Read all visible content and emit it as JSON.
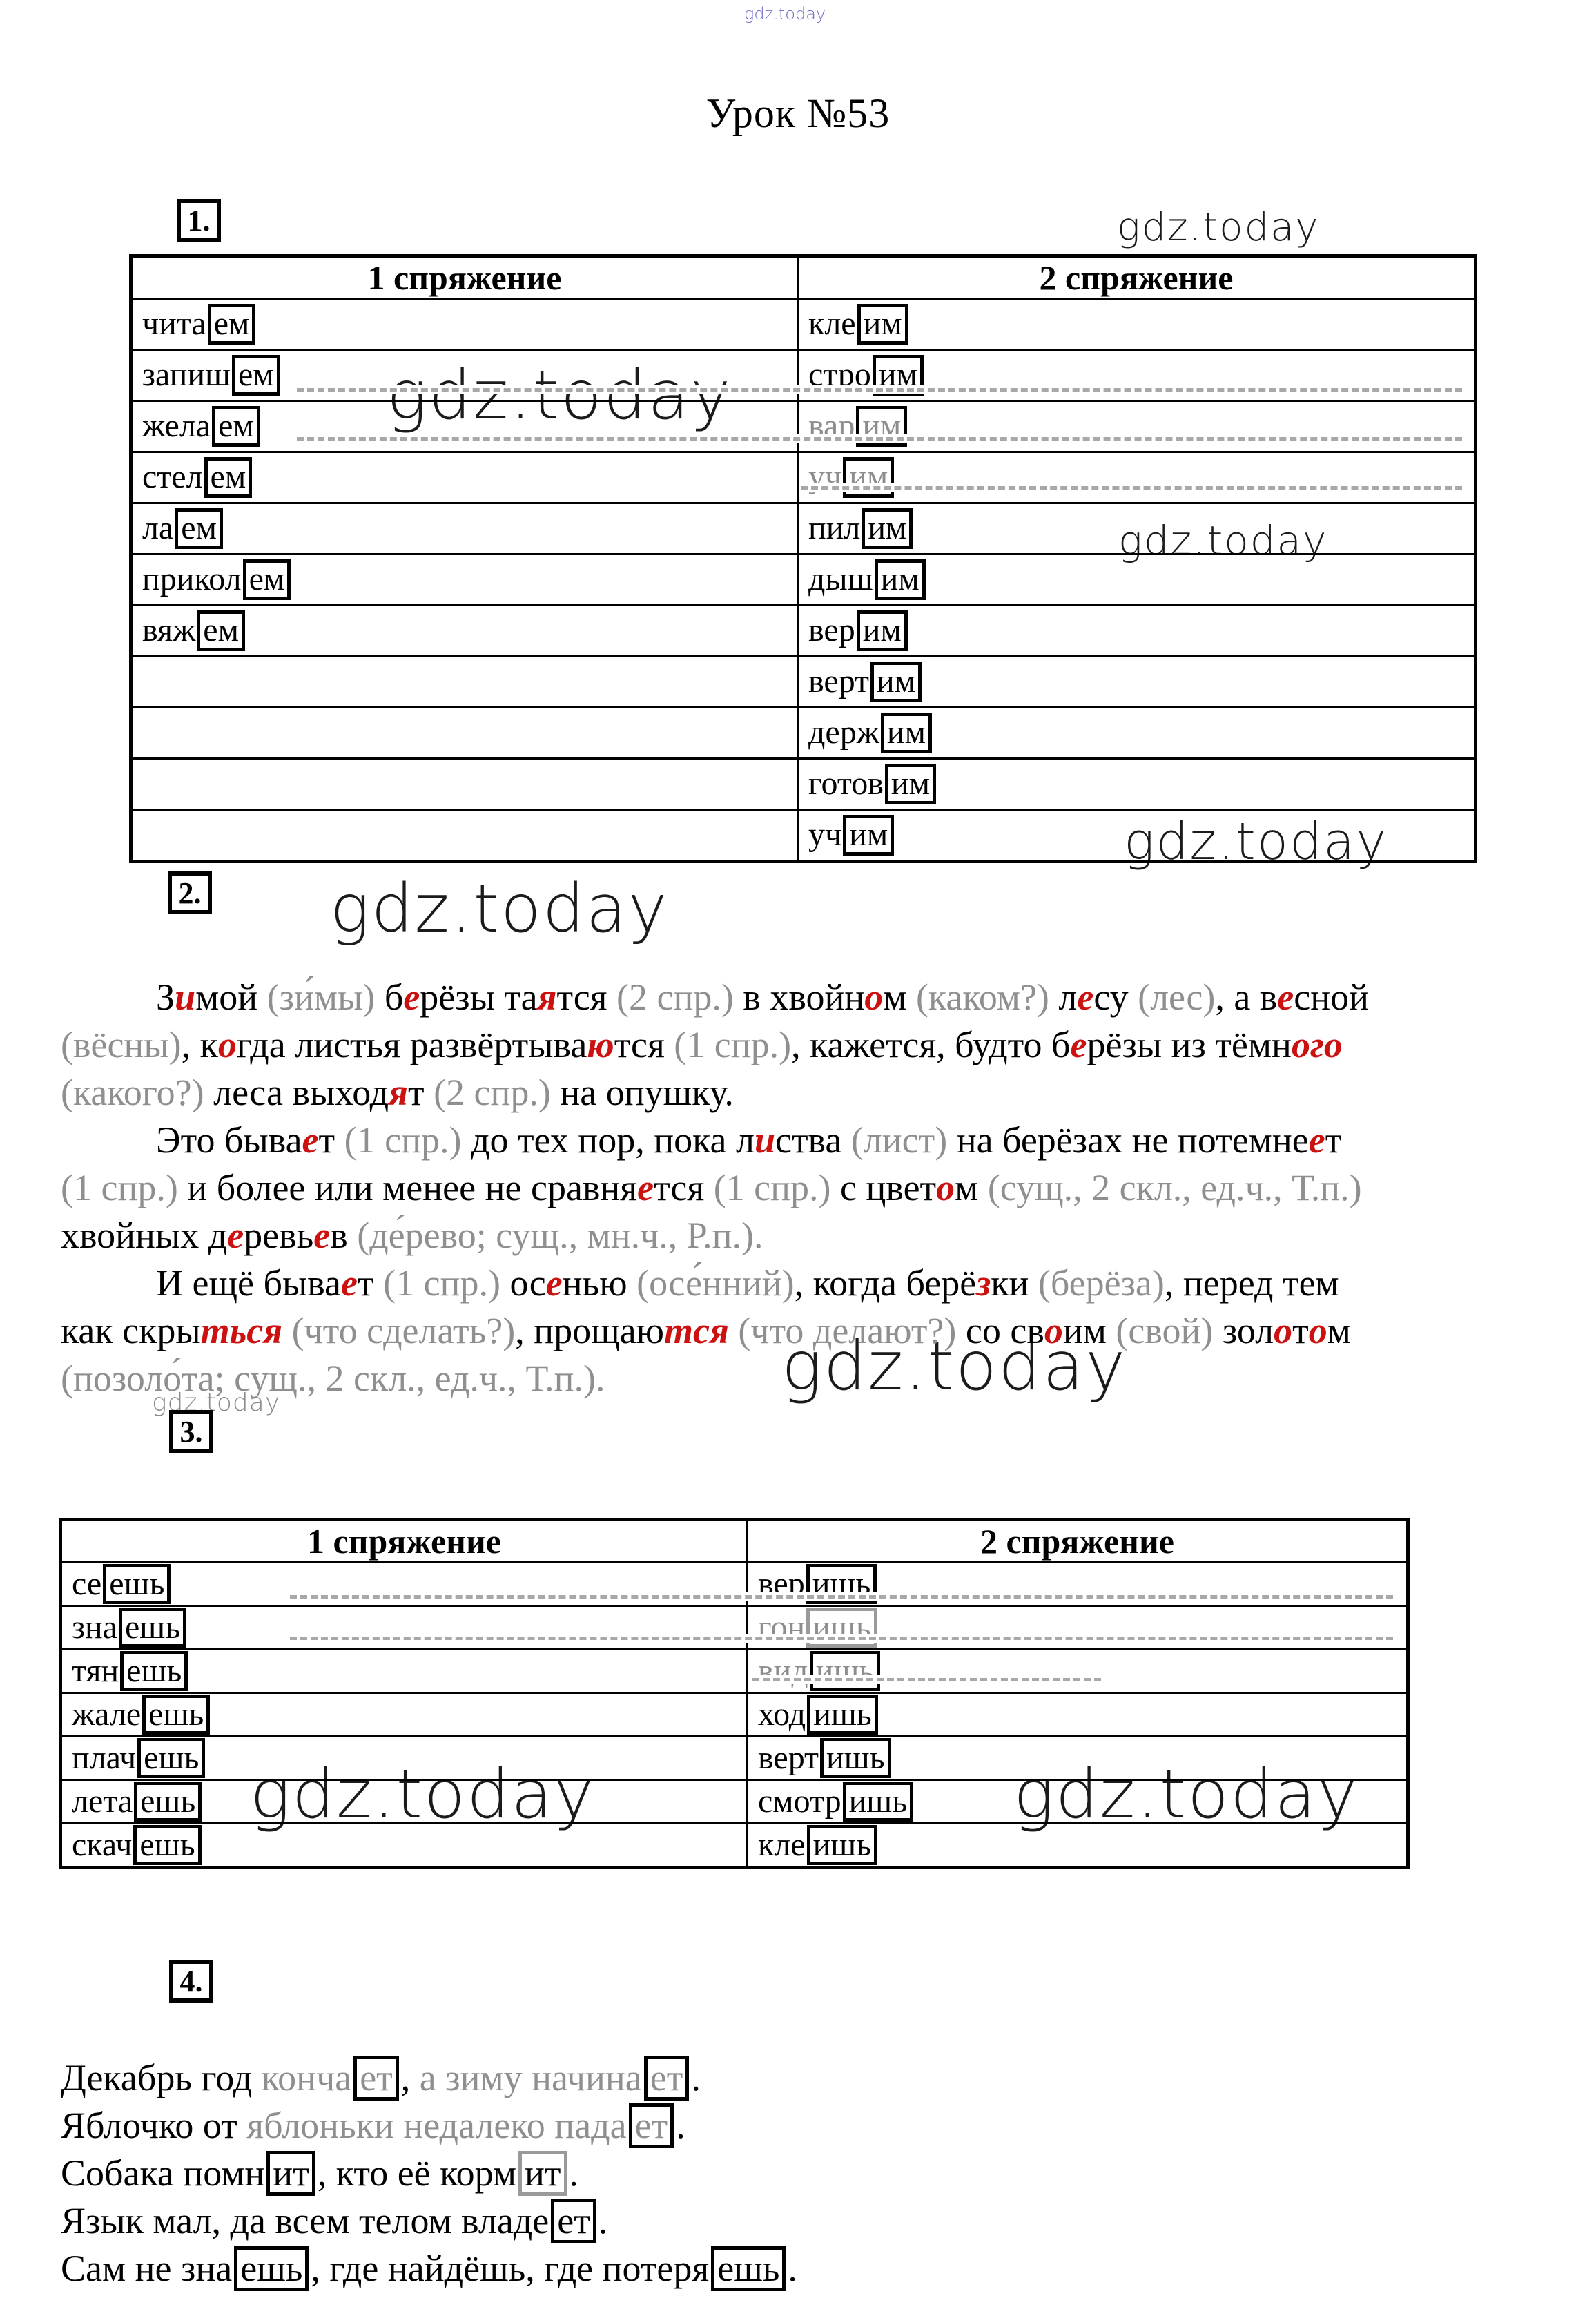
{
  "title": "Урок №53",
  "watermark_text": "gdz.today",
  "colors": {
    "red": "#cc1111",
    "hint_gray": "#8f8f8f",
    "watermark_blue": "#5b5bc0",
    "watermark_dark": "#1b1b1b"
  },
  "boxes": {
    "b1": "1.",
    "b2": "2.",
    "b3": "3.",
    "b4": "4."
  },
  "table1": {
    "headers": [
      "1 спряжение",
      "2 спряжение"
    ],
    "rows": [
      {
        "l": [
          "чита",
          "ем"
        ],
        "r": [
          "кле",
          "им"
        ]
      },
      {
        "l": [
          "запиш",
          "ем"
        ],
        "r": [
          "стро",
          "им"
        ]
      },
      {
        "l": [
          "жела",
          "ем"
        ],
        "r": [
          "вар",
          "им"
        ],
        "rdim": true
      },
      {
        "l": [
          "стел",
          "ем"
        ],
        "r": [
          "уч",
          "им"
        ],
        "rdim": true
      },
      {
        "l": [
          "ла",
          "ем"
        ],
        "r": [
          "пил",
          "им"
        ]
      },
      {
        "l": [
          "прикол",
          "ем"
        ],
        "r": [
          "дыш",
          "им"
        ]
      },
      {
        "l": [
          "вяж",
          "ем"
        ],
        "r": [
          "вер",
          "им"
        ]
      },
      {
        "l": null,
        "r": [
          "верт",
          "им"
        ]
      },
      {
        "l": null,
        "r": [
          "держ",
          "им"
        ]
      },
      {
        "l": null,
        "r": [
          "готов",
          "им"
        ]
      },
      {
        "l": null,
        "r": [
          "уч",
          "им"
        ]
      }
    ]
  },
  "table2": {
    "headers": [
      "1 спряжение",
      "2 спряжение"
    ],
    "rows": [
      {
        "l": [
          "се",
          "ешь"
        ],
        "r": [
          "вер",
          "ишь"
        ]
      },
      {
        "l": [
          "зна",
          "ешь"
        ],
        "r": [
          "гон",
          "ишь"
        ],
        "rdim": true,
        "rdimbox": true
      },
      {
        "l": [
          "тян",
          "ешь"
        ],
        "r": [
          "вид",
          "ишь"
        ],
        "rdim": true
      },
      {
        "l": [
          "жале",
          "ешь"
        ],
        "r": [
          "ход",
          "ишь"
        ]
      },
      {
        "l": [
          "плач",
          "ешь"
        ],
        "r": [
          "верт",
          "ишь"
        ]
      },
      {
        "l": [
          "лета",
          "ешь"
        ],
        "r": [
          "смотр",
          "ишь"
        ]
      },
      {
        "l": [
          "скач",
          "ешь"
        ],
        "r": [
          "кле",
          "ишь"
        ]
      }
    ]
  },
  "exercise2_lines": [
    {
      "indent": true,
      "tokens": [
        [
          "З",
          "n"
        ],
        [
          "и",
          "r"
        ],
        [
          "мой ",
          "n"
        ],
        [
          "(зи́мы) ",
          "g"
        ],
        [
          "б",
          "n"
        ],
        [
          "е",
          "r"
        ],
        [
          "рёзы та",
          "n"
        ],
        [
          "я",
          "r"
        ],
        [
          "тся ",
          "n"
        ],
        [
          "(2 спр.) ",
          "g"
        ],
        [
          "в хвойн",
          "n"
        ],
        [
          "о",
          "r"
        ],
        [
          "м ",
          "n"
        ],
        [
          "(каком?) ",
          "g"
        ],
        [
          "л",
          "n"
        ],
        [
          "е",
          "r"
        ],
        [
          "су ",
          "n"
        ],
        [
          "(лес)",
          "g"
        ],
        [
          ", а в",
          "n"
        ],
        [
          "е",
          "r"
        ],
        [
          "сной",
          "n"
        ]
      ]
    },
    {
      "indent": false,
      "tokens": [
        [
          "(вёсны)",
          "g"
        ],
        [
          ", к",
          "n"
        ],
        [
          "о",
          "r"
        ],
        [
          "гда листья развёртыва",
          "n"
        ],
        [
          "ю",
          "r"
        ],
        [
          "тся ",
          "n"
        ],
        [
          "(1 спр.)",
          "g"
        ],
        [
          ", кажется, будто б",
          "n"
        ],
        [
          "е",
          "r"
        ],
        [
          "рёзы из тёмн",
          "n"
        ],
        [
          "ого",
          "r"
        ]
      ]
    },
    {
      "indent": false,
      "tokens": [
        [
          "(какого?) ",
          "g"
        ],
        [
          "леса выход",
          "n"
        ],
        [
          "я",
          "r"
        ],
        [
          "т ",
          "n"
        ],
        [
          "(2 спр.) ",
          "g"
        ],
        [
          "на опушку.",
          "n"
        ]
      ]
    },
    {
      "indent": true,
      "tokens": [
        [
          "Это быва",
          "n"
        ],
        [
          "е",
          "r"
        ],
        [
          "т ",
          "n"
        ],
        [
          "(1 спр.) ",
          "g"
        ],
        [
          "до тех пор, пока л",
          "n"
        ],
        [
          "и",
          "r"
        ],
        [
          "ства ",
          "n"
        ],
        [
          "(лист) ",
          "g"
        ],
        [
          "на берёзах не потемне",
          "n"
        ],
        [
          "е",
          "r"
        ],
        [
          "т",
          "n"
        ]
      ]
    },
    {
      "indent": false,
      "tokens": [
        [
          "(1 спр.) ",
          "g"
        ],
        [
          "и более или менее не сравня",
          "n"
        ],
        [
          "е",
          "r"
        ],
        [
          "тся ",
          "n"
        ],
        [
          "(1 спр.) ",
          "g"
        ],
        [
          "с цвет",
          "n"
        ],
        [
          "о",
          "r"
        ],
        [
          "м ",
          "n"
        ],
        [
          "(сущ., 2 скл., ед.ч., Т.п.)",
          "g"
        ]
      ]
    },
    {
      "indent": false,
      "tokens": [
        [
          "хвойных д",
          "n"
        ],
        [
          "е",
          "r"
        ],
        [
          "ревь",
          "n"
        ],
        [
          "е",
          "r"
        ],
        [
          "в ",
          "n"
        ],
        [
          "(де́рево; сущ., мн.ч., Р.п.).",
          "g"
        ]
      ]
    },
    {
      "indent": true,
      "tokens": [
        [
          "И ещё быва",
          "n"
        ],
        [
          "е",
          "r"
        ],
        [
          "т ",
          "n"
        ],
        [
          "(1 спр.) ",
          "g"
        ],
        [
          "ос",
          "n"
        ],
        [
          "е",
          "r"
        ],
        [
          "нью ",
          "n"
        ],
        [
          "(осе́нний)",
          "g"
        ],
        [
          ", когда берё",
          "n"
        ],
        [
          "з",
          "r"
        ],
        [
          "ки ",
          "n"
        ],
        [
          "(берёза)",
          "g"
        ],
        [
          ", перед тем",
          "n"
        ]
      ]
    },
    {
      "indent": false,
      "tokens": [
        [
          "как скры",
          "n"
        ],
        [
          "ться",
          "r"
        ],
        [
          " ",
          "n"
        ],
        [
          "(что сделать?)",
          "g"
        ],
        [
          ", проща",
          "n"
        ],
        [
          "ю",
          "n"
        ],
        [
          "тся",
          "r"
        ],
        [
          " ",
          "n"
        ],
        [
          "(что делают?) ",
          "g"
        ],
        [
          "со св",
          "n"
        ],
        [
          "о",
          "r"
        ],
        [
          "им ",
          "n"
        ],
        [
          "(свой) ",
          "g"
        ],
        [
          "зол",
          "n"
        ],
        [
          "о",
          "r"
        ],
        [
          "т",
          "n"
        ],
        [
          "о",
          "r"
        ],
        [
          "м",
          "n"
        ]
      ]
    },
    {
      "indent": false,
      "tokens": [
        [
          "(позоло́та; сущ., 2 скл., ед.ч., Т.п.).",
          "g"
        ]
      ]
    }
  ],
  "exercise4_lines": [
    {
      "tokens": [
        [
          "Декабрь год ",
          "n"
        ],
        [
          "конча",
          "g"
        ],
        [
          "ет",
          "xg"
        ],
        [
          ", ",
          "n"
        ],
        [
          "а зиму начина",
          "g"
        ],
        [
          "ет",
          "xg"
        ],
        [
          ".",
          "n"
        ]
      ]
    },
    {
      "tokens": [
        [
          "Яблочко от ",
          "n"
        ],
        [
          "яблоньки недалеко пада",
          "g"
        ],
        [
          "ет",
          "xg"
        ],
        [
          ".",
          "n"
        ]
      ]
    },
    {
      "tokens": [
        [
          "Собака помн",
          "n"
        ],
        [
          "ит",
          "x"
        ],
        [
          ", кто её корм",
          "n"
        ],
        [
          "ит",
          "xb"
        ],
        [
          ".",
          "n"
        ]
      ]
    },
    {
      "tokens": [
        [
          "Язык мал, да всем телом владе",
          "n"
        ],
        [
          "ет",
          "x"
        ],
        [
          ".",
          "n"
        ]
      ]
    },
    {
      "tokens": [
        [
          "Сам не зна",
          "n"
        ],
        [
          "ешь",
          "x"
        ],
        [
          ", где найдёшь, где потеря",
          "n"
        ],
        [
          "ешь",
          "x"
        ],
        [
          ".",
          "n"
        ]
      ]
    }
  ]
}
